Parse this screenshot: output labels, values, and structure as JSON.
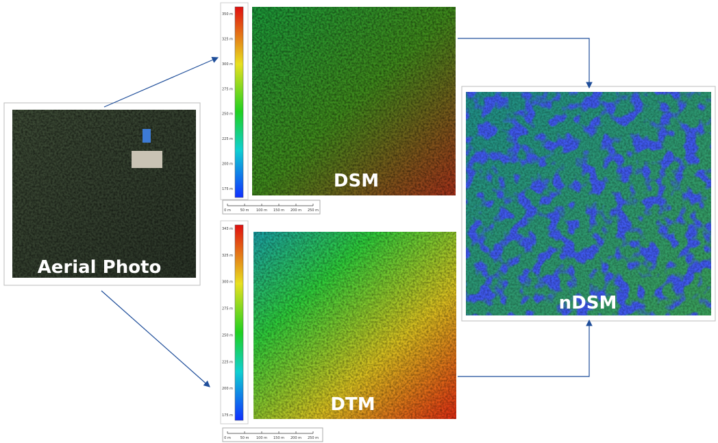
{
  "panels": {
    "aerial": {
      "label": "Aerial Photo"
    },
    "dsm": {
      "label": "DSM",
      "colorbar": [
        "350 m",
        "325 m",
        "300 m",
        "275 m",
        "250 m",
        "225 m",
        "200 m",
        "175 m"
      ],
      "scale": [
        "0 m",
        "50 m",
        "100 m",
        "150 m",
        "200 m",
        "250 m"
      ]
    },
    "dtm": {
      "label": "DTM",
      "colorbar": [
        "343 m",
        "325 m",
        "300 m",
        "275 m",
        "250 m",
        "225 m",
        "200 m",
        "175 m"
      ],
      "scale": [
        "0 m",
        "50 m",
        "100 m",
        "150 m",
        "200 m",
        "250 m"
      ]
    },
    "ndsm": {
      "label": "nDSM"
    }
  }
}
